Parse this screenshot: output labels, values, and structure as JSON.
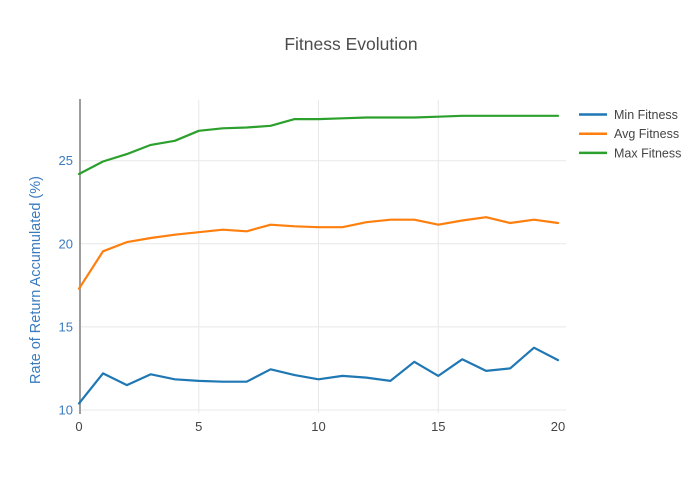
{
  "chart_data": {
    "type": "line",
    "title": "Fitness Evolution",
    "xlabel": "",
    "ylabel": "Rate of Return Accumulated (%)",
    "x": [
      0,
      1,
      2,
      3,
      4,
      5,
      6,
      7,
      8,
      9,
      10,
      11,
      12,
      13,
      14,
      15,
      16,
      17,
      18,
      19,
      20
    ],
    "series": [
      {
        "name": "Min Fitness",
        "color": "#1f77b4",
        "values": [
          10.4,
          12.2,
          11.5,
          12.15,
          11.85,
          11.75,
          11.7,
          11.7,
          12.45,
          12.1,
          11.85,
          12.05,
          11.95,
          11.75,
          12.9,
          12.05,
          13.05,
          12.35,
          12.5,
          13.75,
          13.0
        ]
      },
      {
        "name": "Avg Fitness",
        "color": "#ff7f0e",
        "values": [
          17.3,
          19.55,
          20.1,
          20.35,
          20.55,
          20.7,
          20.85,
          20.75,
          21.15,
          21.05,
          21.0,
          21.0,
          21.3,
          21.45,
          21.45,
          21.15,
          21.4,
          21.6,
          21.25,
          21.45,
          21.25
        ]
      },
      {
        "name": "Max Fitness",
        "color": "#2ca02c",
        "values": [
          24.2,
          24.95,
          25.4,
          25.95,
          26.2,
          26.8,
          26.95,
          27.0,
          27.1,
          27.5,
          27.5,
          27.55,
          27.6,
          27.6,
          27.6,
          27.65,
          27.7,
          27.7,
          27.7,
          27.7,
          27.7
        ]
      }
    ],
    "x_ticks": [
      0,
      5,
      10,
      15,
      20
    ],
    "y_ticks": [
      10,
      15,
      20,
      25
    ],
    "xlim": [
      0,
      20.35
    ],
    "ylim": [
      9.8,
      28.65
    ],
    "grid": true,
    "legend_position": "top-right",
    "colors": {
      "grid": "#e8e8e8",
      "axis_line": "#9e9e9e",
      "axis_text": "#3a7bbf",
      "tick_text": "#444444",
      "title_text": "#4d4d4d"
    }
  }
}
